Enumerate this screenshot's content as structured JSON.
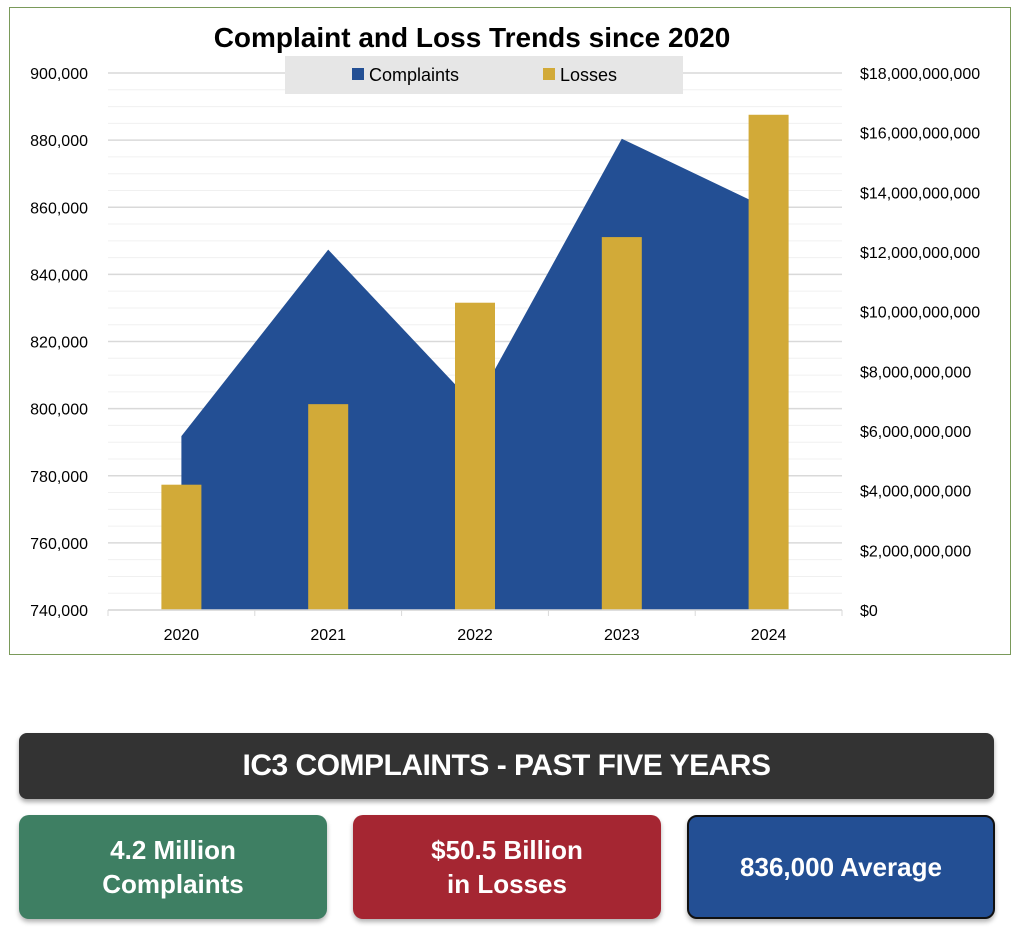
{
  "chart_data": {
    "type": "bar+area",
    "title": "Complaint and Loss Trends since 2020",
    "categories": [
      "2020",
      "2021",
      "2022",
      "2023",
      "2024"
    ],
    "series": [
      {
        "name": "Complaints",
        "type": "area",
        "axis": "left",
        "color": "#234f94",
        "values": [
          791790,
          847376,
          800944,
          880418,
          859532
        ]
      },
      {
        "name": "Losses",
        "type": "bar",
        "axis": "right",
        "color": "#d2aa38",
        "values": [
          4200000000,
          6900000000,
          10300000000,
          12500000000,
          16600000000
        ]
      }
    ],
    "left_axis": {
      "ylim": [
        740000,
        900000
      ],
      "ticks": [
        "740,000",
        "760,000",
        "780,000",
        "800,000",
        "820,000",
        "840,000",
        "860,000",
        "880,000",
        "900,000"
      ]
    },
    "right_axis": {
      "ylim": [
        0,
        18000000000
      ],
      "ticks": [
        "$0",
        "$2,000,000,000",
        "$4,000,000,000",
        "$6,000,000,000",
        "$8,000,000,000",
        "$10,000,000,000",
        "$12,000,000,000",
        "$14,000,000,000",
        "$16,000,000,000",
        "$18,000,000,000"
      ]
    },
    "grid": true,
    "legend": "top-center"
  },
  "summary": {
    "banner": "IC3 COMPLAINTS - PAST FIVE YEARS",
    "cards": [
      {
        "line1": "4.2 Million",
        "line2": "Complaints",
        "color": "#3e7f63"
      },
      {
        "line1": "$50.5 Billion",
        "line2": "in Losses",
        "color": "#a52632"
      },
      {
        "line1": "836,000 Average",
        "line2": "",
        "color": "#234f94"
      }
    ]
  }
}
